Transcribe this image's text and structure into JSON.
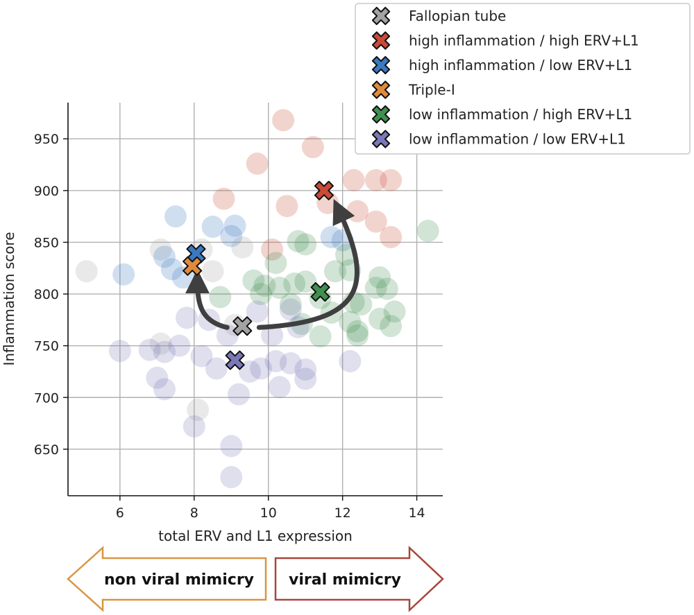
{
  "chart_data": {
    "type": "scatter",
    "title": "",
    "xlabel": "total ERV and L1 expression",
    "ylabel": "Inflammation score",
    "xlim": [
      4.6,
      14.7
    ],
    "ylim": [
      605,
      985
    ],
    "xticks": [
      6,
      8,
      10,
      12,
      14
    ],
    "yticks": [
      650,
      700,
      750,
      800,
      850,
      900,
      950
    ],
    "grid": true,
    "legend_position": "top-right",
    "series": [
      {
        "name": "Fallopian tube",
        "color": "#a3a3a3",
        "centroid": {
          "x": 9.3,
          "y": 769
        },
        "points": [
          {
            "x": 5.1,
            "y": 822
          },
          {
            "x": 7.1,
            "y": 843
          },
          {
            "x": 8.2,
            "y": 843
          },
          {
            "x": 9.3,
            "y": 845
          },
          {
            "x": 8.5,
            "y": 822
          },
          {
            "x": 7.1,
            "y": 752
          },
          {
            "x": 8.1,
            "y": 688
          },
          {
            "x": 9.1,
            "y": 770
          }
        ]
      },
      {
        "name": "high inflammation / high ERV+L1",
        "color": "#c94a38",
        "centroid": {
          "x": 11.5,
          "y": 900
        },
        "points": [
          {
            "x": 10.4,
            "y": 968
          },
          {
            "x": 11.2,
            "y": 942
          },
          {
            "x": 9.7,
            "y": 926
          },
          {
            "x": 8.8,
            "y": 892
          },
          {
            "x": 10.5,
            "y": 885
          },
          {
            "x": 12.3,
            "y": 910
          },
          {
            "x": 12.9,
            "y": 910
          },
          {
            "x": 13.3,
            "y": 910
          },
          {
            "x": 12.4,
            "y": 880
          },
          {
            "x": 12.9,
            "y": 870
          },
          {
            "x": 13.3,
            "y": 855
          },
          {
            "x": 10.1,
            "y": 843
          },
          {
            "x": 11.6,
            "y": 888
          }
        ]
      },
      {
        "name": "high inflammation / low ERV+L1",
        "color": "#3a78c2",
        "centroid": {
          "x": 8.05,
          "y": 839
        },
        "points": [
          {
            "x": 6.1,
            "y": 819
          },
          {
            "x": 7.2,
            "y": 836
          },
          {
            "x": 7.5,
            "y": 875
          },
          {
            "x": 8.5,
            "y": 865
          },
          {
            "x": 9.1,
            "y": 866
          },
          {
            "x": 9.0,
            "y": 856
          },
          {
            "x": 7.4,
            "y": 824
          },
          {
            "x": 7.7,
            "y": 816
          },
          {
            "x": 11.7,
            "y": 855
          },
          {
            "x": 12.0,
            "y": 852
          }
        ]
      },
      {
        "name": "Triple-I",
        "color": "#e08a3c",
        "centroid": {
          "x": 7.95,
          "y": 827
        },
        "points": []
      },
      {
        "name": "low inflammation / high ERV+L1",
        "color": "#3f8f4f",
        "centroid": {
          "x": 11.4,
          "y": 802
        },
        "points": [
          {
            "x": 14.3,
            "y": 861
          },
          {
            "x": 10.8,
            "y": 851
          },
          {
            "x": 11.0,
            "y": 848
          },
          {
            "x": 12.1,
            "y": 838
          },
          {
            "x": 10.2,
            "y": 830
          },
          {
            "x": 11.8,
            "y": 822
          },
          {
            "x": 12.2,
            "y": 823
          },
          {
            "x": 13.0,
            "y": 816
          },
          {
            "x": 9.6,
            "y": 813
          },
          {
            "x": 9.9,
            "y": 808
          },
          {
            "x": 10.3,
            "y": 806
          },
          {
            "x": 10.7,
            "y": 810
          },
          {
            "x": 11.0,
            "y": 812
          },
          {
            "x": 12.9,
            "y": 806
          },
          {
            "x": 13.2,
            "y": 805
          },
          {
            "x": 8.7,
            "y": 797
          },
          {
            "x": 9.8,
            "y": 800
          },
          {
            "x": 10.6,
            "y": 790
          },
          {
            "x": 11.4,
            "y": 796
          },
          {
            "x": 12.3,
            "y": 792
          },
          {
            "x": 12.5,
            "y": 790
          },
          {
            "x": 13.4,
            "y": 783
          },
          {
            "x": 13.0,
            "y": 776
          },
          {
            "x": 12.2,
            "y": 773
          },
          {
            "x": 12.4,
            "y": 764
          },
          {
            "x": 13.3,
            "y": 769
          },
          {
            "x": 11.4,
            "y": 759
          },
          {
            "x": 10.9,
            "y": 771
          },
          {
            "x": 11.7,
            "y": 782
          },
          {
            "x": 12.4,
            "y": 760
          }
        ]
      },
      {
        "name": "low inflammation / low ERV+L1",
        "color": "#7b78b8",
        "centroid": {
          "x": 9.1,
          "y": 736
        },
        "points": [
          {
            "x": 6.0,
            "y": 745
          },
          {
            "x": 6.8,
            "y": 746
          },
          {
            "x": 7.2,
            "y": 744
          },
          {
            "x": 7.6,
            "y": 750
          },
          {
            "x": 7.0,
            "y": 719
          },
          {
            "x": 7.2,
            "y": 708
          },
          {
            "x": 7.8,
            "y": 777
          },
          {
            "x": 8.2,
            "y": 740
          },
          {
            "x": 8.6,
            "y": 728
          },
          {
            "x": 8.9,
            "y": 760
          },
          {
            "x": 9.2,
            "y": 703
          },
          {
            "x": 9.5,
            "y": 725
          },
          {
            "x": 9.8,
            "y": 728
          },
          {
            "x": 10.2,
            "y": 735
          },
          {
            "x": 10.3,
            "y": 710
          },
          {
            "x": 10.6,
            "y": 785
          },
          {
            "x": 10.8,
            "y": 768
          },
          {
            "x": 11.0,
            "y": 727
          },
          {
            "x": 11.0,
            "y": 718
          },
          {
            "x": 12.2,
            "y": 735
          },
          {
            "x": 9.0,
            "y": 653
          },
          {
            "x": 9.0,
            "y": 623
          },
          {
            "x": 8.0,
            "y": 672
          },
          {
            "x": 10.1,
            "y": 760
          },
          {
            "x": 10.6,
            "y": 733
          },
          {
            "x": 9.7,
            "y": 783
          },
          {
            "x": 8.4,
            "y": 775
          }
        ]
      }
    ],
    "transitions": [
      {
        "from": "Fallopian tube",
        "to": "high inflammation / low ERV+L1"
      },
      {
        "from": "Fallopian tube",
        "to": "high inflammation / high ERV+L1"
      }
    ],
    "annotations": {
      "left_arrow": "non viral mimicry",
      "right_arrow": "viral mimicry"
    }
  }
}
